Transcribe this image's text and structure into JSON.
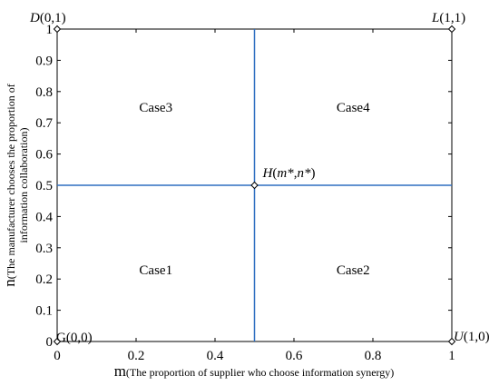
{
  "chart_data": {
    "type": "scatter",
    "x_axis": {
      "label_main": "m",
      "label_rest": "(The proportion of supplier who choose information synergy)",
      "range": [
        0,
        1
      ],
      "ticks": [
        "0",
        "0.2",
        "0.4",
        "0.6",
        "0.8",
        "1"
      ],
      "tick_values": [
        0,
        0.2,
        0.4,
        0.6,
        0.8,
        1
      ]
    },
    "y_axis": {
      "label_main": "n",
      "label_line1": "(The manufacturer chooses the proportion of",
      "label_line2": "information collaboration)",
      "range": [
        0,
        1
      ],
      "ticks": [
        "0",
        "0.1",
        "0.2",
        "0.3",
        "0.4",
        "0.5",
        "0.6",
        "0.7",
        "0.8",
        "0.9",
        "1"
      ],
      "tick_values": [
        0,
        0.1,
        0.2,
        0.3,
        0.4,
        0.5,
        0.6,
        0.7,
        0.8,
        0.9,
        1
      ]
    },
    "points": [
      {
        "letter": "D",
        "coord": "(0,1)",
        "x": 0,
        "y": 1
      },
      {
        "letter": "L",
        "coord": "(1,1)",
        "x": 1,
        "y": 1
      },
      {
        "letter": "G",
        "coord": "(0,0)",
        "x": 0,
        "y": 0
      },
      {
        "letter": "U",
        "coord": "(1,0)",
        "x": 1,
        "y": 0
      },
      {
        "letter": "H",
        "coord_parts": [
          "(",
          "m*",
          ",",
          "n*",
          ")"
        ],
        "x": 0.5,
        "y": 0.5
      }
    ],
    "divider_lines": [
      {
        "orientation": "vertical",
        "value": 0.5
      },
      {
        "orientation": "horizontal",
        "value": 0.5
      }
    ],
    "regions": [
      {
        "label": "Case3",
        "x": 0.25,
        "y": 0.75
      },
      {
        "label": "Case4",
        "x": 0.75,
        "y": 0.75
      },
      {
        "label": "Case1",
        "x": 0.25,
        "y": 0.23
      },
      {
        "label": "Case2",
        "x": 0.75,
        "y": 0.23
      }
    ],
    "line_color": "#2e6fc0",
    "grid": false
  }
}
